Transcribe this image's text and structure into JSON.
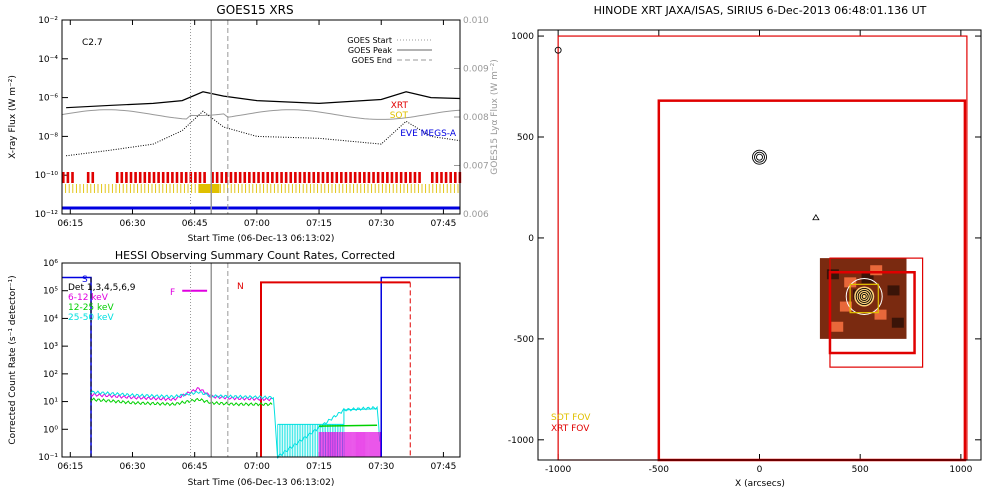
{
  "colors": {
    "red": "#e00000",
    "yellow": "#e0c000",
    "blue": "#0000e0",
    "magenta": "#e000e0",
    "green": "#00d000",
    "cyan": "#00e0e0",
    "grey": "#999999",
    "black": "#000000"
  },
  "chart_data": [
    {
      "type": "line",
      "title": "GOES15 XRS",
      "xlabel": "Start Time (06-Dec-13 06:13:02)",
      "ylabel": "X-ray Flux (W m⁻²)",
      "ylabel_right": "GOES15 Lyα Flux (W m⁻²)",
      "x_ticks": [
        "06:15",
        "06:30",
        "06:45",
        "07:00",
        "07:15",
        "07:30",
        "07:45"
      ],
      "y_ticks": [
        "10⁻²",
        "10⁻⁴",
        "10⁻⁶",
        "10⁻⁸",
        "10⁻¹⁰",
        "10⁻¹²"
      ],
      "y_ticks_right": [
        "0.010",
        "0.009",
        "0.008",
        "0.007",
        "0.006"
      ],
      "ylim": [
        1e-12,
        0.01
      ],
      "ylim_right": [
        0.006,
        0.01
      ],
      "y_scale": "log",
      "class_label": "C2.7",
      "legend_placement": "top-right",
      "legend": [
        {
          "name": "GOES Start",
          "style": "dotted"
        },
        {
          "name": "GOES Peak",
          "style": "solid"
        },
        {
          "name": "GOES End",
          "style": "dashed"
        }
      ],
      "instrument_labels": {
        "xrt": "XRT",
        "sot": "SOT",
        "eve": "EVE MEGS-A"
      },
      "event_times": {
        "start": "06:44",
        "peak": "06:49",
        "end": "06:53"
      },
      "series": [
        {
          "name": "XRS long",
          "x": [
            "06:14",
            "06:25",
            "06:35",
            "06:42",
            "06:47",
            "06:52",
            "07:00",
            "07:15",
            "07:30",
            "07:36",
            "07:42",
            "07:49"
          ],
          "values": [
            3e-07,
            4e-07,
            5e-07,
            7e-07,
            2e-06,
            1.2e-06,
            7e-07,
            5e-07,
            8e-07,
            2e-06,
            1e-06,
            9e-07
          ]
        },
        {
          "name": "XRS short",
          "x": [
            "06:14",
            "06:25",
            "06:35",
            "06:42",
            "06:47",
            "06:52",
            "07:00",
            "07:15",
            "07:30",
            "07:36",
            "07:42",
            "07:49"
          ],
          "values": [
            1e-09,
            2e-09,
            4e-09,
            2e-08,
            2e-07,
            3e-08,
            1e-08,
            8e-09,
            4e-09,
            6e-08,
            1e-08,
            6e-09
          ]
        }
      ],
      "xrt_coverage": [
        [
          "06:13",
          "06:16"
        ],
        [
          "06:19",
          "06:21"
        ],
        [
          "06:26",
          "06:48"
        ],
        [
          "06:49",
          "07:39"
        ],
        [
          "07:42",
          "07:49"
        ]
      ],
      "sot_coverage": [
        [
          "06:13",
          "07:49"
        ]
      ]
    },
    {
      "type": "line",
      "title": "HESSI Observing Summary Count Rates, Corrected",
      "xlabel": "Start Time (06-Dec-13 06:13:02)",
      "ylabel": "Corrected Count Rate (s⁻¹ detector⁻¹)",
      "x_ticks": [
        "06:15",
        "06:30",
        "06:45",
        "07:00",
        "07:15",
        "07:30",
        "07:45"
      ],
      "y_ticks": [
        "10⁶",
        "10⁵",
        "10⁴",
        "10³",
        "10²",
        "10¹",
        "10⁰",
        "10⁻¹"
      ],
      "ylim": [
        0.1,
        1000000.0
      ],
      "y_scale": "log",
      "legend_placement": "top-left",
      "legend": [
        {
          "name": "Det 1,3,4,5,6,9"
        },
        {
          "name": "6-12 keV"
        },
        {
          "name": "12-25 keV"
        },
        {
          "name": "25-50 keV"
        }
      ],
      "flag_labels": {
        "s": "S",
        "f": "F",
        "n": "N"
      },
      "series": [
        {
          "name": "6-12 keV",
          "x": [
            "06:20",
            "06:30",
            "06:40",
            "06:46",
            "06:49",
            "06:55",
            "07:04"
          ],
          "values": [
            18,
            14,
            12,
            30,
            15,
            13,
            12
          ]
        },
        {
          "name": "12-25 keV",
          "x": [
            "06:20",
            "06:30",
            "06:40",
            "06:46",
            "06:49",
            "06:55",
            "07:04"
          ],
          "values": [
            12,
            9,
            8,
            12,
            9,
            8,
            8
          ]
        },
        {
          "name": "25-50 keV",
          "x": [
            "06:20",
            "06:30",
            "06:40",
            "06:46",
            "06:49",
            "06:55",
            "07:04",
            "07:05",
            "07:21",
            "07:29",
            "07:30"
          ],
          "values": [
            22,
            17,
            15,
            22,
            16,
            15,
            14,
            0.1,
            5,
            6,
            0.1
          ]
        }
      ]
    },
    {
      "type": "scatter",
      "title": "HINODE XRT JAXA/ISAS, SIRIUS   6-Dec-2013 06:48:01.136 UT",
      "xlabel": "X (arcsecs)",
      "ylabel": "",
      "x_ticks": [
        "-1000",
        "-500",
        "0",
        "500",
        "1000"
      ],
      "y_ticks": [
        "1000",
        "500",
        "0",
        "-500",
        "-1000"
      ],
      "xlim": [
        -1100,
        1100
      ],
      "ylim": [
        -1100,
        1030
      ],
      "fov_legend": [
        {
          "name": "SOT FOV",
          "color": "#e0c000"
        },
        {
          "name": "XRT FOV",
          "color": "#e00000"
        }
      ],
      "fov_boxes": [
        {
          "instrument": "XRT",
          "x0": -1000,
          "y0": -1100,
          "x1": 1030,
          "y1": 1000
        },
        {
          "instrument": "XRT",
          "x0": -500,
          "y0": -1100,
          "x1": 1020,
          "y1": 680
        },
        {
          "instrument": "XRT",
          "x0": 350,
          "y0": -640,
          "x1": 810,
          "y1": -100
        },
        {
          "instrument": "XRT",
          "x0": 350,
          "y0": -570,
          "x1": 770,
          "y1": -170
        },
        {
          "instrument": "SOT",
          "x0": 450,
          "y0": -370,
          "x1": 590,
          "y1": -230
        }
      ],
      "contours": [
        {
          "x": -1000,
          "y": 930
        },
        {
          "x": 0,
          "y": 400
        },
        {
          "x": 280,
          "y": 100
        },
        {
          "x": 520,
          "y": -290
        }
      ]
    }
  ]
}
